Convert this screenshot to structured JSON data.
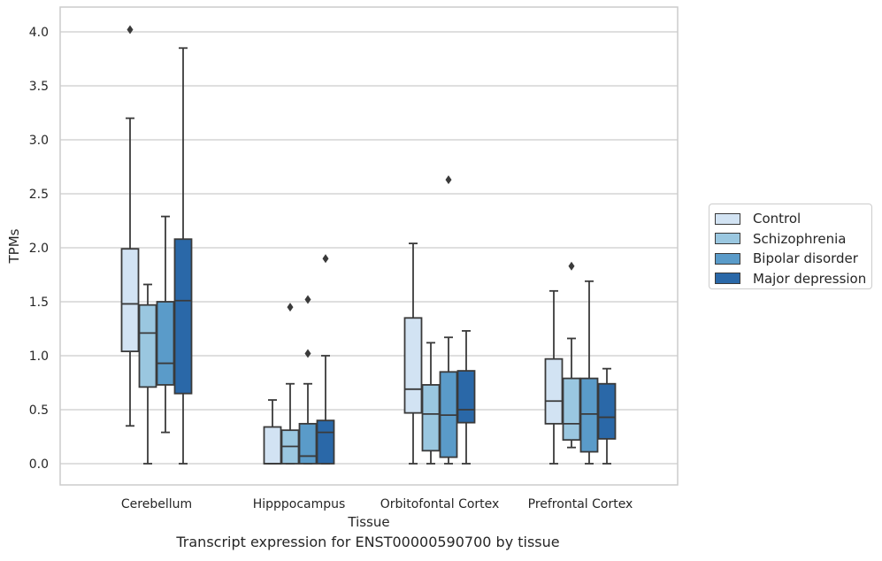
{
  "caption": "Transcript expression for ENST00000590700 by tissue",
  "chart_data": {
    "type": "boxplot",
    "title": "",
    "xlabel": "Tissue",
    "ylabel": "TPMs",
    "ylim": [
      -0.2,
      4.22
    ],
    "yticks": [
      "0.0",
      "0.5",
      "1.0",
      "1.5",
      "2.0",
      "2.5",
      "3.0",
      "3.5",
      "4.0"
    ],
    "grid": "horizontal",
    "legend_position": "right",
    "categories": [
      "Cerebellum",
      "Hipppocampus",
      "Orbitofontal Cortex",
      "Prefrontal Cortex"
    ],
    "series": [
      {
        "name": "Control",
        "color": "#d2e3f3",
        "boxes": [
          {
            "whislo": 0.35,
            "q1": 1.04,
            "med": 1.48,
            "q3": 1.99,
            "whishi": 3.2,
            "fliers": [
              4.02
            ]
          },
          {
            "whislo": 0.0,
            "q1": 0.0,
            "med": 0.0,
            "q3": 0.34,
            "whishi": 0.59,
            "fliers": []
          },
          {
            "whislo": 0.0,
            "q1": 0.47,
            "med": 0.69,
            "q3": 1.35,
            "whishi": 2.04,
            "fliers": []
          },
          {
            "whislo": 0.0,
            "q1": 0.37,
            "med": 0.58,
            "q3": 0.97,
            "whishi": 1.6,
            "fliers": []
          }
        ]
      },
      {
        "name": "Schizophrenia",
        "color": "#9ac7e0",
        "boxes": [
          {
            "whislo": 0.0,
            "q1": 0.71,
            "med": 1.21,
            "q3": 1.47,
            "whishi": 1.66,
            "fliers": []
          },
          {
            "whislo": 0.0,
            "q1": 0.0,
            "med": 0.16,
            "q3": 0.31,
            "whishi": 0.74,
            "fliers": [
              1.45
            ]
          },
          {
            "whislo": 0.0,
            "q1": 0.12,
            "med": 0.46,
            "q3": 0.73,
            "whishi": 1.12,
            "fliers": []
          },
          {
            "whislo": 0.15,
            "q1": 0.22,
            "med": 0.37,
            "q3": 0.79,
            "whishi": 1.16,
            "fliers": [
              1.83
            ]
          }
        ]
      },
      {
        "name": "Bipolar disorder",
        "color": "#5a9bc9",
        "boxes": [
          {
            "whislo": 0.29,
            "q1": 0.73,
            "med": 0.93,
            "q3": 1.5,
            "whishi": 2.29,
            "fliers": []
          },
          {
            "whislo": 0.0,
            "q1": 0.0,
            "med": 0.07,
            "q3": 0.37,
            "whishi": 0.74,
            "fliers": [
              1.02,
              1.52
            ]
          },
          {
            "whislo": 0.0,
            "q1": 0.06,
            "med": 0.45,
            "q3": 0.85,
            "whishi": 1.17,
            "fliers": [
              2.63
            ]
          },
          {
            "whislo": 0.0,
            "q1": 0.11,
            "med": 0.46,
            "q3": 0.79,
            "whishi": 1.69,
            "fliers": []
          }
        ]
      },
      {
        "name": "Major depression",
        "color": "#2a68a8",
        "boxes": [
          {
            "whislo": 0.0,
            "q1": 0.65,
            "med": 1.51,
            "q3": 2.08,
            "whishi": 3.85,
            "fliers": []
          },
          {
            "whislo": 0.0,
            "q1": 0.0,
            "med": 0.29,
            "q3": 0.4,
            "whishi": 1.0,
            "fliers": [
              1.9
            ]
          },
          {
            "whislo": 0.0,
            "q1": 0.38,
            "med": 0.5,
            "q3": 0.86,
            "whishi": 1.23,
            "fliers": []
          },
          {
            "whislo": 0.0,
            "q1": 0.23,
            "med": 0.43,
            "q3": 0.74,
            "whishi": 0.88,
            "fliers": []
          }
        ]
      }
    ]
  }
}
